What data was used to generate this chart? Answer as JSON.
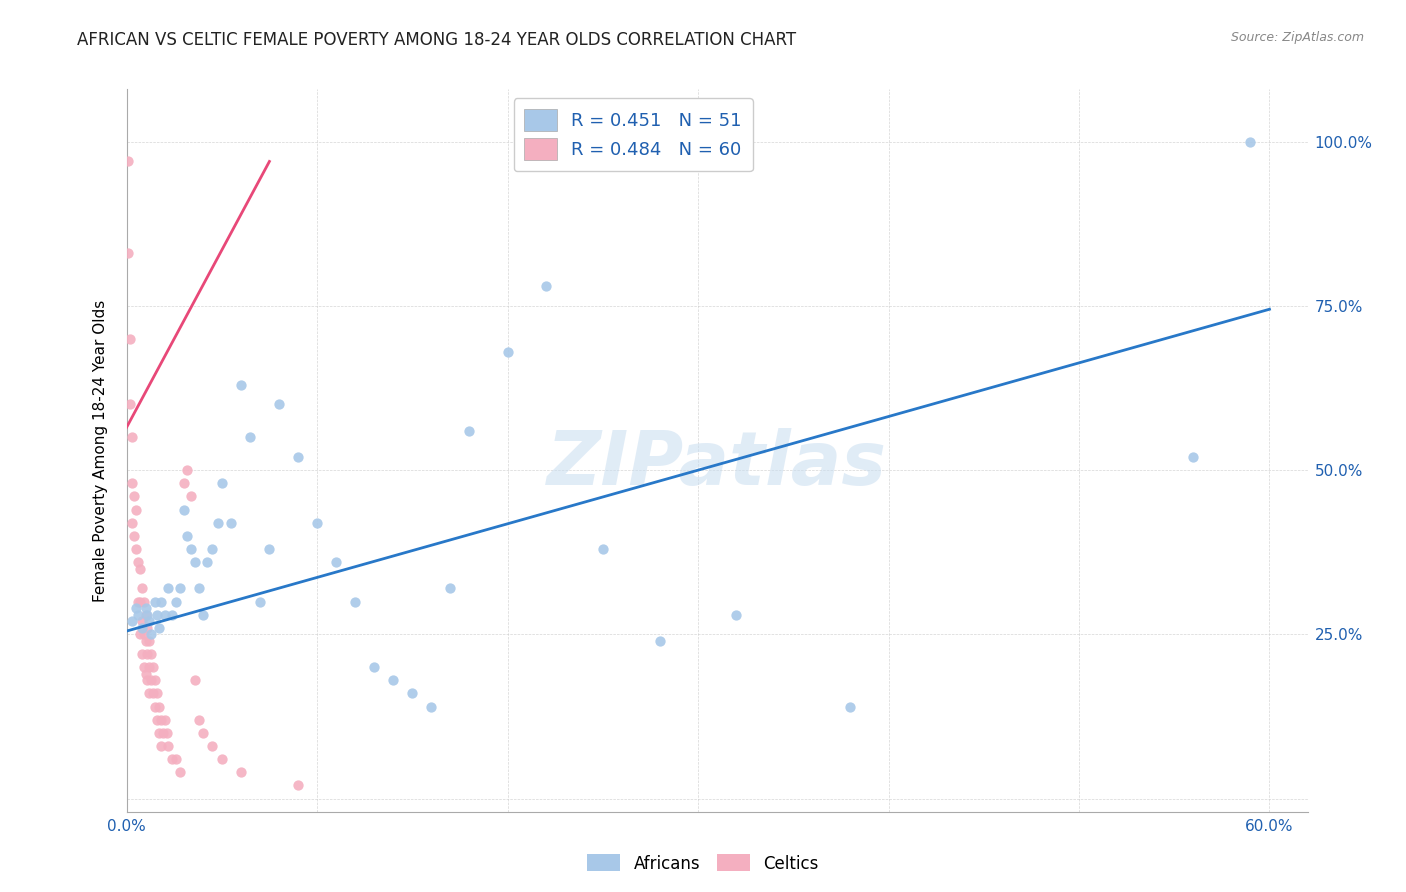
{
  "title": "AFRICAN VS CELTIC FEMALE POVERTY AMONG 18-24 YEAR OLDS CORRELATION CHART",
  "source": "Source: ZipAtlas.com",
  "ylabel": "Female Poverty Among 18-24 Year Olds",
  "xlim": [
    0.0,
    0.62
  ],
  "ylim": [
    -0.02,
    1.08
  ],
  "african_color": "#a8c8e8",
  "celtic_color": "#f4afc0",
  "trendline_african_color": "#2878c8",
  "trendline_celtic_color": "#e84878",
  "legend_text_color": "#2060b0",
  "r_african": 0.451,
  "n_african": 51,
  "r_celtic": 0.484,
  "n_celtic": 60,
  "africans_x": [
    0.003,
    0.005,
    0.006,
    0.008,
    0.01,
    0.011,
    0.012,
    0.013,
    0.015,
    0.016,
    0.017,
    0.018,
    0.02,
    0.022,
    0.024,
    0.026,
    0.028,
    0.03,
    0.032,
    0.034,
    0.036,
    0.038,
    0.04,
    0.042,
    0.045,
    0.048,
    0.05,
    0.055,
    0.06,
    0.065,
    0.07,
    0.075,
    0.08,
    0.09,
    0.1,
    0.11,
    0.12,
    0.13,
    0.14,
    0.15,
    0.16,
    0.17,
    0.18,
    0.2,
    0.22,
    0.25,
    0.28,
    0.32,
    0.38,
    0.56,
    0.59
  ],
  "africans_y": [
    0.27,
    0.29,
    0.28,
    0.26,
    0.29,
    0.28,
    0.27,
    0.25,
    0.3,
    0.28,
    0.26,
    0.3,
    0.28,
    0.32,
    0.28,
    0.3,
    0.32,
    0.44,
    0.4,
    0.38,
    0.36,
    0.32,
    0.28,
    0.36,
    0.38,
    0.42,
    0.48,
    0.42,
    0.63,
    0.55,
    0.3,
    0.38,
    0.6,
    0.52,
    0.42,
    0.36,
    0.3,
    0.2,
    0.18,
    0.16,
    0.14,
    0.32,
    0.56,
    0.68,
    0.78,
    0.38,
    0.24,
    0.28,
    0.14,
    0.52,
    1.0
  ],
  "celtics_x": [
    0.001,
    0.001,
    0.002,
    0.002,
    0.003,
    0.003,
    0.003,
    0.004,
    0.004,
    0.005,
    0.005,
    0.006,
    0.006,
    0.007,
    0.007,
    0.007,
    0.008,
    0.008,
    0.008,
    0.009,
    0.009,
    0.009,
    0.01,
    0.01,
    0.01,
    0.011,
    0.011,
    0.011,
    0.012,
    0.012,
    0.012,
    0.013,
    0.013,
    0.014,
    0.014,
    0.015,
    0.015,
    0.016,
    0.016,
    0.017,
    0.017,
    0.018,
    0.018,
    0.019,
    0.02,
    0.021,
    0.022,
    0.024,
    0.026,
    0.028,
    0.03,
    0.032,
    0.034,
    0.036,
    0.038,
    0.04,
    0.045,
    0.05,
    0.06,
    0.09
  ],
  "celtics_y": [
    0.97,
    0.83,
    0.7,
    0.6,
    0.55,
    0.48,
    0.42,
    0.46,
    0.4,
    0.44,
    0.38,
    0.36,
    0.3,
    0.35,
    0.3,
    0.25,
    0.32,
    0.27,
    0.22,
    0.3,
    0.25,
    0.2,
    0.28,
    0.24,
    0.19,
    0.26,
    0.22,
    0.18,
    0.24,
    0.2,
    0.16,
    0.22,
    0.18,
    0.2,
    0.16,
    0.18,
    0.14,
    0.16,
    0.12,
    0.14,
    0.1,
    0.12,
    0.08,
    0.1,
    0.12,
    0.1,
    0.08,
    0.06,
    0.06,
    0.04,
    0.48,
    0.5,
    0.46,
    0.18,
    0.12,
    0.1,
    0.08,
    0.06,
    0.04,
    0.02
  ],
  "african_trend_x": [
    0.0,
    0.6
  ],
  "african_trend_y": [
    0.255,
    0.745
  ],
  "celtic_trend_x": [
    0.0,
    0.075
  ],
  "celtic_trend_y": [
    0.565,
    0.97
  ]
}
